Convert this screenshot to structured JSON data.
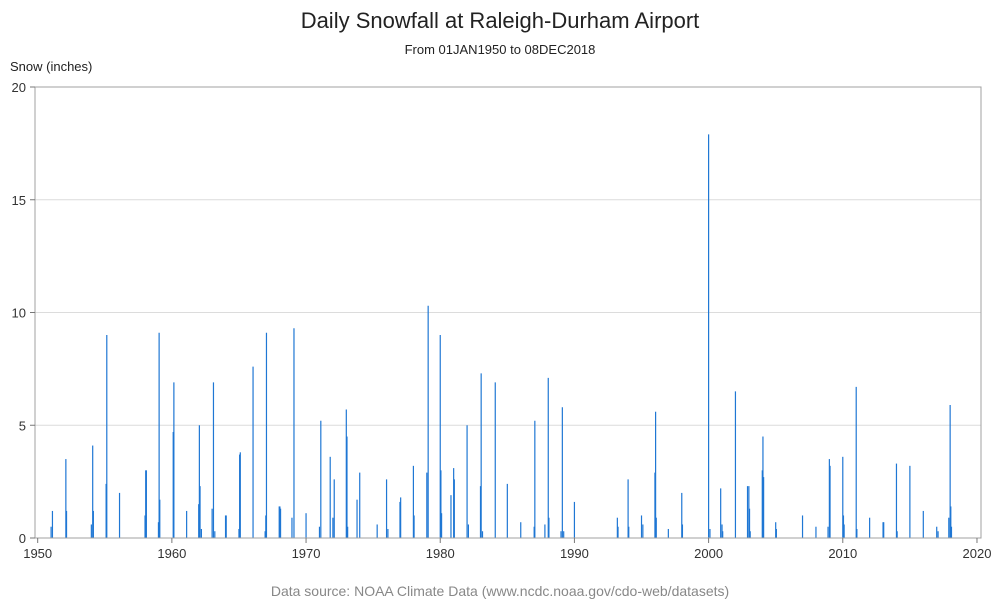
{
  "chart_data": {
    "type": "bar",
    "title": "Daily Snowfall at Raleigh-Durham Airport",
    "subtitle": "From 01JAN1950 to 08DEC2018",
    "xlabel": "",
    "ylabel": "Snow (inches)",
    "xlim": [
      1949.8,
      2020.3
    ],
    "ylim": [
      0,
      20
    ],
    "x_ticks": [
      "1950",
      "1960",
      "1970",
      "1980",
      "1990",
      "2000",
      "2010",
      "2020"
    ],
    "y_ticks": [
      "0",
      "5",
      "10",
      "15",
      "20"
    ],
    "grid": "horizontal",
    "legend": "none",
    "bar_color": "#1f77d4",
    "series": [
      {
        "x": [
          1951.0,
          1951.1,
          1952.1,
          1952.15,
          1954.0,
          1954.1,
          1954.15,
          1955.1,
          1955.15,
          1956.1,
          1958.0,
          1958.05,
          1958.1,
          1959.0,
          1959.05,
          1959.1,
          1960.1,
          1960.15,
          1961.1,
          1962.0,
          1962.05,
          1962.1,
          1962.2,
          1963.0,
          1963.1,
          1963.2,
          1964.0,
          1964.05,
          1965.0,
          1965.05,
          1965.1,
          1966.05,
          1966.95,
          1967.0,
          1967.05,
          1968.0,
          1968.05,
          1968.1,
          1968.95,
          1969.1,
          1970.0,
          1971.0,
          1971.1,
          1971.8,
          1972.0,
          1972.1,
          1973.0,
          1973.05,
          1973.1,
          1973.8,
          1974.0,
          1975.3,
          1976.0,
          1976.1,
          1977.0,
          1977.05,
          1978.0,
          1978.05,
          1979.0,
          1979.1,
          1980.0,
          1980.05,
          1980.1,
          1980.8,
          1981.0,
          1981.05,
          1982.0,
          1982.1,
          1983.0,
          1983.05,
          1983.15,
          1984.1,
          1985.0,
          1986.0,
          1987.0,
          1987.05,
          1987.8,
          1988.05,
          1988.1,
          1989.0,
          1989.1,
          1989.2,
          1990.0,
          1993.2,
          1993.25,
          1994.0,
          1994.05,
          1995.0,
          1995.1,
          1996.0,
          1996.05,
          1996.1,
          1997.0,
          1998.0,
          1998.05,
          2000.0,
          2000.1,
          2000.9,
          2001.0,
          2001.05,
          2002.0,
          2002.9,
          2003.0,
          2003.05,
          2003.1,
          2004.0,
          2004.05,
          2004.1,
          2005.0,
          2005.05,
          2007.0,
          2008.0,
          2008.9,
          2009.0,
          2009.05,
          2010.0,
          2010.05,
          2010.1,
          2011.0,
          2011.05,
          2012.0,
          2013.0,
          2013.05,
          2014.0,
          2014.05,
          2015.0,
          2016.0,
          2017.0,
          2017.1,
          2017.9,
          2018.0,
          2018.05,
          2018.1
        ],
        "values": [
          0.5,
          1.2,
          3.5,
          1.2,
          0.6,
          4.1,
          1.2,
          2.4,
          9.0,
          2.0,
          1.0,
          3.0,
          3.0,
          0.7,
          9.1,
          1.7,
          4.7,
          6.9,
          1.2,
          1.5,
          5.0,
          2.3,
          0.4,
          1.3,
          6.9,
          0.3,
          1.0,
          1.0,
          0.4,
          3.7,
          3.8,
          7.6,
          0.3,
          1.0,
          9.1,
          1.4,
          1.4,
          1.3,
          0.9,
          9.3,
          1.1,
          0.5,
          5.2,
          3.6,
          0.9,
          2.6,
          5.7,
          4.5,
          0.5,
          1.7,
          2.9,
          0.6,
          2.6,
          0.4,
          1.6,
          1.8,
          3.2,
          1.0,
          2.9,
          10.3,
          9.0,
          3.0,
          1.1,
          1.9,
          3.1,
          2.6,
          5.0,
          0.6,
          2.3,
          7.3,
          0.3,
          6.9,
          2.4,
          0.7,
          0.5,
          5.2,
          0.6,
          7.1,
          0.9,
          0.3,
          5.8,
          0.3,
          1.6,
          0.9,
          0.5,
          2.6,
          0.5,
          1.0,
          0.6,
          2.9,
          5.6,
          0.9,
          0.4,
          2.0,
          0.6,
          17.9,
          0.4,
          2.2,
          0.6,
          0.3,
          6.5,
          2.3,
          2.3,
          1.3,
          0.3,
          3.0,
          4.5,
          2.7,
          0.7,
          0.4,
          1.0,
          0.5,
          0.5,
          3.5,
          3.2,
          3.6,
          1.0,
          0.6,
          6.7,
          0.4,
          0.9,
          0.7,
          0.7,
          3.3,
          0.3,
          3.2,
          1.2,
          0.5,
          0.3,
          0.9,
          5.9,
          1.4,
          0.5
        ]
      }
    ]
  },
  "footnote": "Data source: NOAA Climate Data (www.ncdc.noaa.gov/cdo-web/datasets)"
}
